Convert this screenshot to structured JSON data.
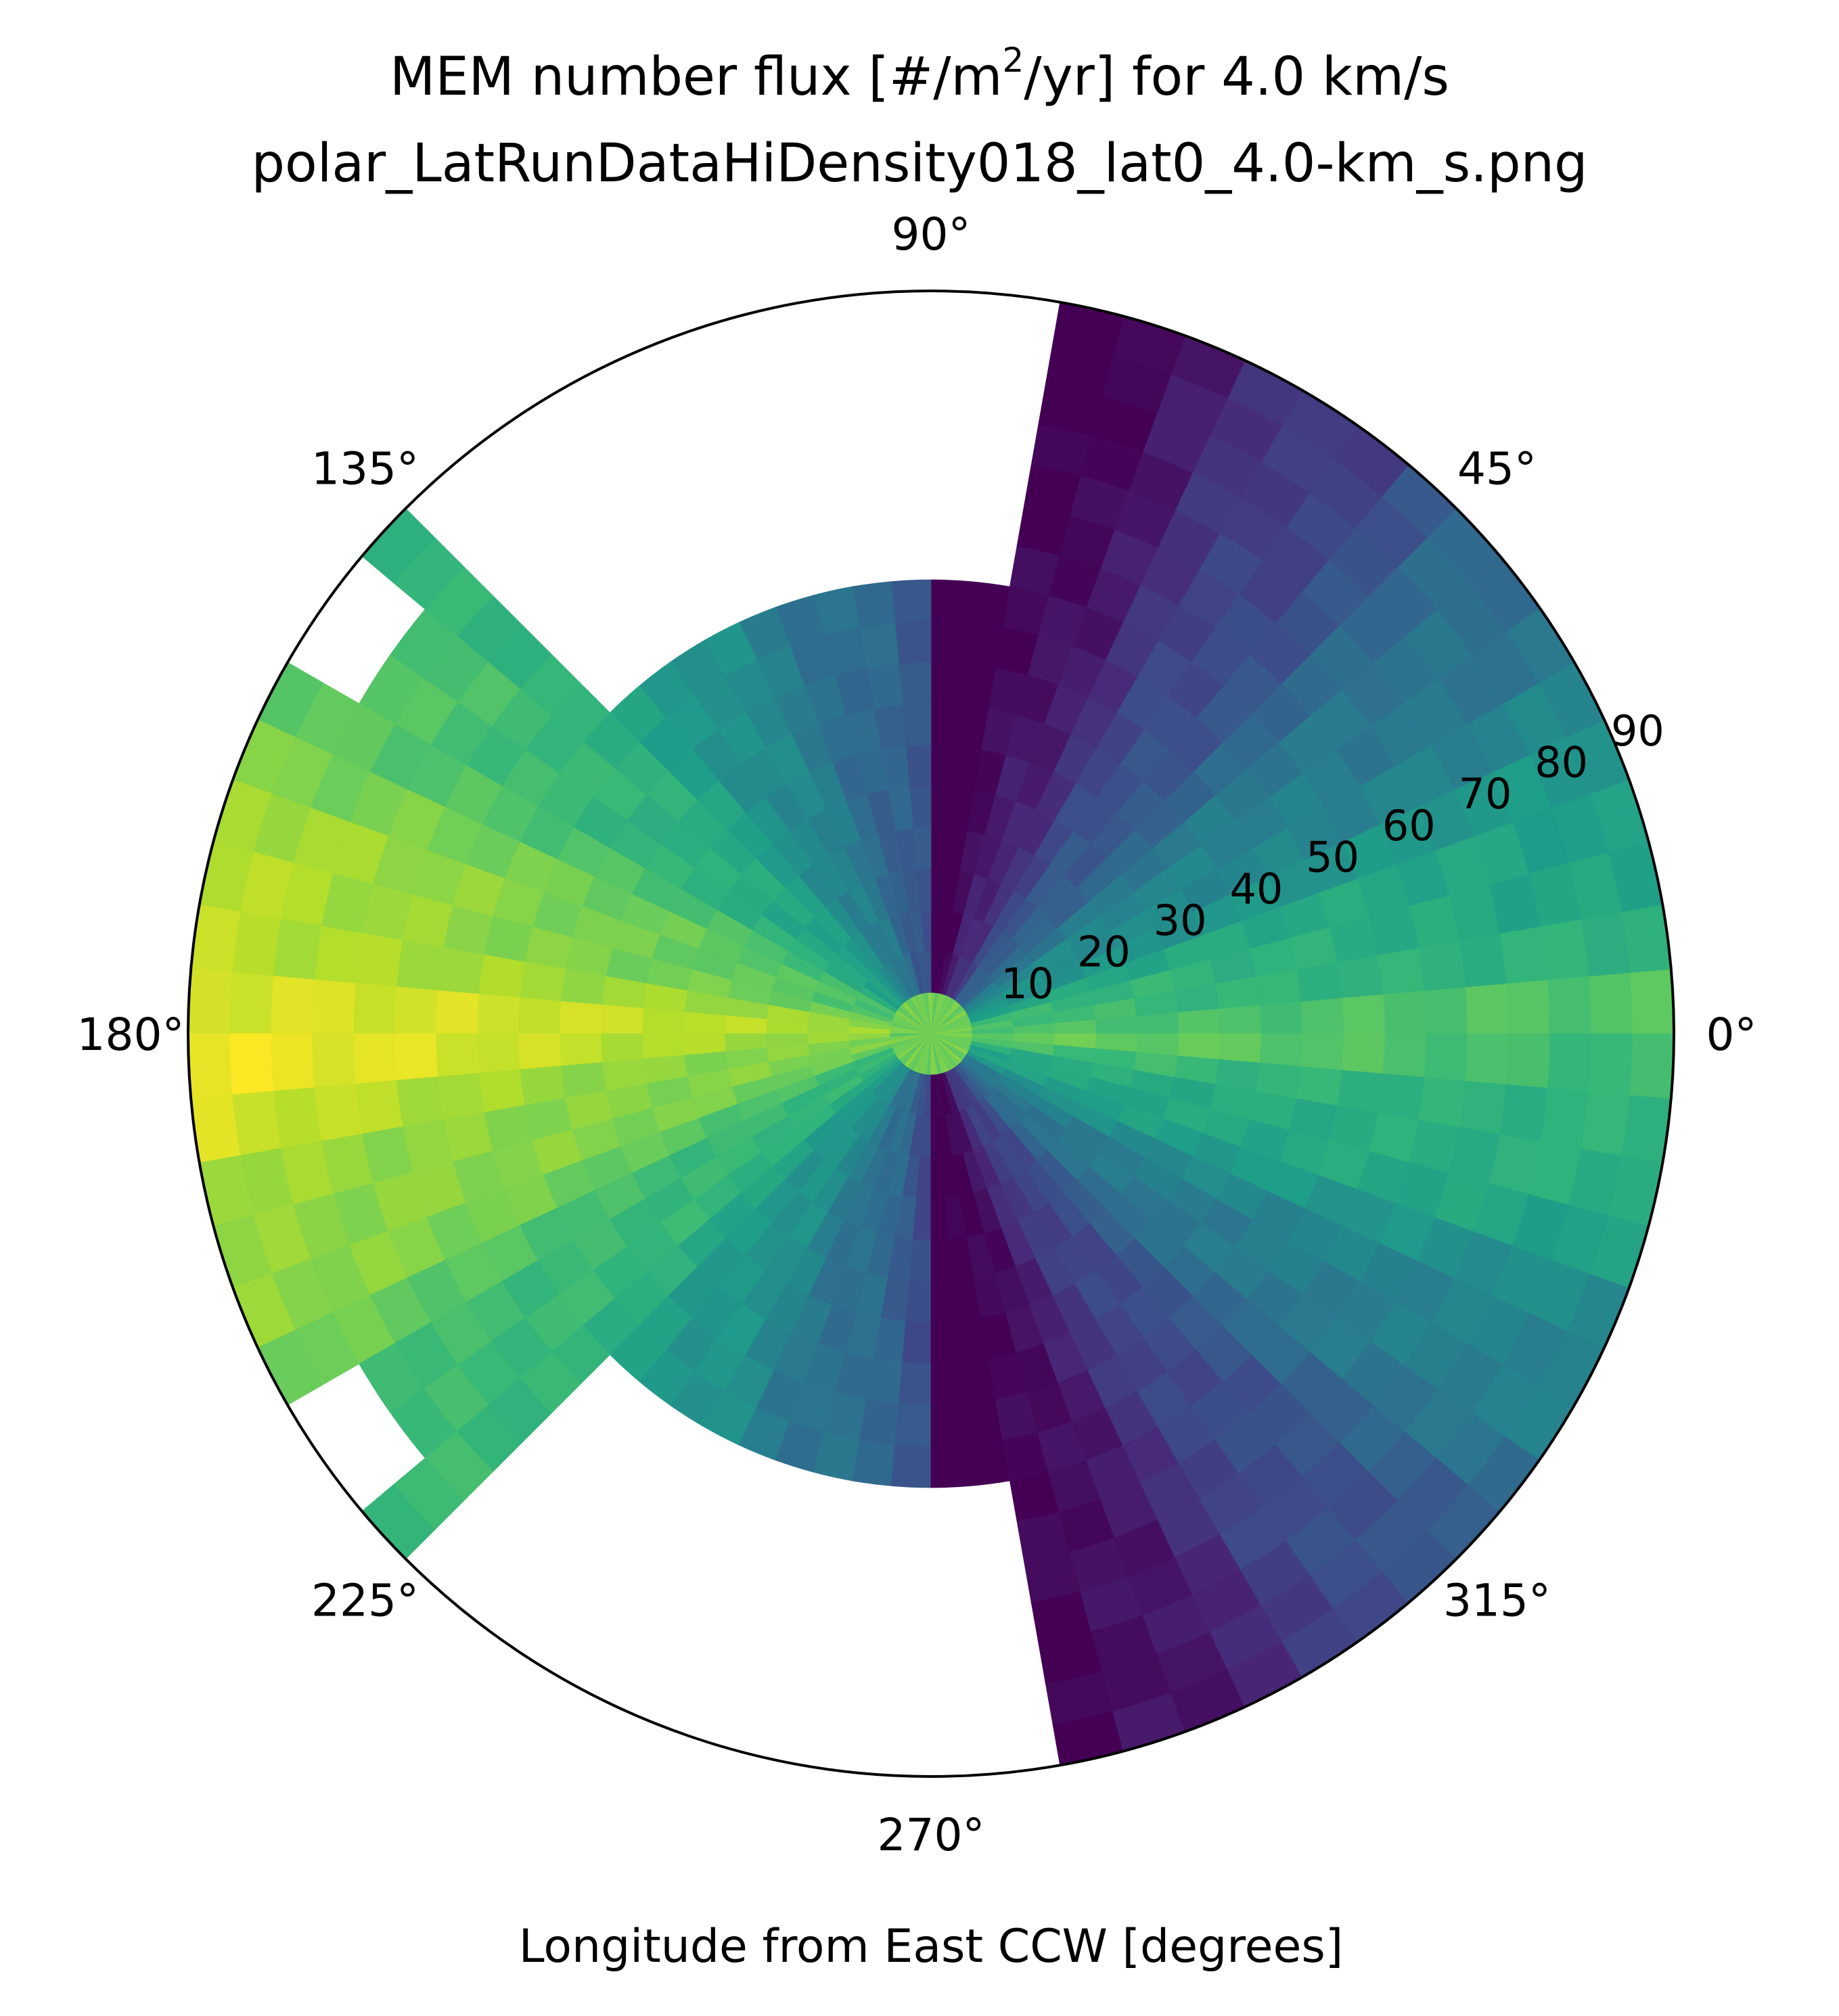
{
  "chart_data": {
    "type": "heatmap",
    "projection": "polar",
    "title_line1": "MEM number flux [#/m",
    "title_sup": "2",
    "title_line1_end": "/yr] for 4.0 km/s",
    "title_line2": "polar_LatRunDataHiDensity018_lat0_4.0-km_s.png",
    "xlabel": "Longitude from East CCW [degrees]",
    "angle_tick_labels": [
      "0°",
      "45°",
      "90°",
      "135°",
      "180°",
      "225°",
      "270°",
      "315°"
    ],
    "radial_tick_labels": [
      "10",
      "20",
      "30",
      "40",
      "50",
      "60",
      "70",
      "80",
      "90"
    ],
    "radial_range": [
      0,
      90
    ],
    "angle_range": [
      0,
      360
    ],
    "colormap": "viridis",
    "colormap_stops": [
      "#440154",
      "#482878",
      "#3e4989",
      "#31688e",
      "#26828e",
      "#1f9e89",
      "#35b779",
      "#6ece58",
      "#b5de2b",
      "#fde725"
    ],
    "values_note": "normalized color level 0-1 per (angle, radius) cell",
    "grid": false,
    "legend": "none"
  }
}
